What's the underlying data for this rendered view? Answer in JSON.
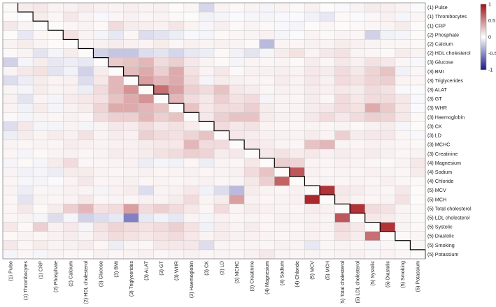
{
  "chart_data": {
    "type": "heatmap",
    "title": "",
    "variables": [
      "(1) Pulse",
      "(1) Thrombocytes",
      "(1) CRP",
      "(2) Phosphate",
      "(2) Calcium",
      "(2) HDL cholesterol",
      "(3) Glucose",
      "(3) BMI",
      "(3) Triglycerides",
      "(3) ALAT",
      "(3) GT",
      "(3) WHR",
      "(3) Haemoglobin",
      "(3) CK",
      "(3) LD",
      "(3) MCHC",
      "(3) Creatinine",
      "(4) Magnesium",
      "(4) Sodium",
      "(4) Chloride",
      "(5) MCV",
      "(5) MCH",
      "(5) Total cholesterol",
      "(5) LDL cholesterol",
      "(5) Systolic",
      "(5) Diastolic",
      "(5) Smoking",
      "(5) Potassium"
    ],
    "values": [
      [
        0.03,
        0.08,
        0.1,
        0.05,
        0.06,
        0.08,
        0.06,
        0.05,
        0.07,
        0.05,
        0.06,
        0.02,
        0.04,
        -0.18,
        0.05,
        0.03,
        0.05,
        -0.05,
        0.05,
        0.03,
        0.06,
        0.02,
        -0.03,
        0.05,
        0.08,
        0.07,
        0.05,
        -0.02
      ],
      [
        0.02,
        0.01,
        0.08,
        0.04,
        0.1,
        0.05,
        -0.03,
        0.04,
        0.06,
        0.04,
        0.05,
        0.03,
        0.02,
        -0.06,
        -0.05,
        -0.02,
        -0.04,
        -0.05,
        -0.03,
        -0.02,
        -0.06,
        -0.1,
        0.03,
        -0.02,
        0.04,
        0.06,
        -0.04,
        0.04
      ],
      [
        0.1,
        0.05,
        0.01,
        0.02,
        0.04,
        0.05,
        0.03,
        0.15,
        0.08,
        0.07,
        0.06,
        0.11,
        0.05,
        -0.04,
        0.07,
        0.03,
        0.05,
        0.03,
        -0.03,
        -0.05,
        0.02,
        0.04,
        0.02,
        0.03,
        0.04,
        0.05,
        0.08,
        0.02
      ],
      [
        0.02,
        -0.1,
        0.04,
        0.02,
        0.12,
        0.05,
        -0.05,
        -0.1,
        0.04,
        -0.15,
        -0.12,
        -0.08,
        -0.03,
        -0.05,
        0.03,
        0.04,
        0.05,
        0.06,
        -0.05,
        -0.02,
        0.05,
        0.03,
        0.05,
        0.04,
        -0.2,
        -0.06,
        -0.05,
        0.02
      ],
      [
        0.05,
        0.08,
        0.05,
        0.02,
        0.02,
        0.04,
        0.06,
        0.08,
        0.06,
        0.05,
        0.08,
        0.04,
        0.06,
        0.05,
        0.06,
        0.05,
        0.03,
        -0.3,
        0.05,
        0.04,
        0.06,
        0.05,
        0.08,
        0.06,
        0.05,
        0.04,
        0.04,
        0.03
      ],
      [
        0.03,
        0.05,
        -0.12,
        -0.05,
        0.08,
        0.02,
        -0.2,
        -0.25,
        -0.25,
        -0.15,
        -0.12,
        -0.18,
        -0.1,
        -0.08,
        0.03,
        -0.06,
        -0.12,
        -0.05,
        0.08,
        0.12,
        0.05,
        0.1,
        0.12,
        0.05,
        0.04,
        0.03,
        0.08,
        0.05
      ],
      [
        -0.2,
        -0.05,
        0.08,
        -0.1,
        -0.08,
        -0.1,
        0.02,
        0.22,
        0.25,
        0.3,
        0.15,
        0.2,
        0.1,
        0.05,
        0.03,
        -0.05,
        0.05,
        0.04,
        0.05,
        0.03,
        0.08,
        0.04,
        0.1,
        0.06,
        0.12,
        0.1,
        0.04,
        -0.03
      ],
      [
        0.05,
        0.1,
        0.12,
        -0.12,
        -0.06,
        -0.2,
        0.08,
        0.02,
        0.28,
        0.35,
        0.2,
        0.35,
        0.12,
        0.05,
        0.1,
        0.03,
        0.06,
        0.06,
        0.07,
        0.05,
        0.1,
        0.08,
        0.15,
        0.1,
        0.18,
        0.25,
        -0.06,
        0.04
      ],
      [
        -0.15,
        -0.08,
        0.08,
        0.05,
        0.06,
        -0.15,
        0.1,
        0.3,
        0.02,
        0.4,
        0.3,
        0.35,
        0.15,
        -0.05,
        0.08,
        0.06,
        0.05,
        0.04,
        0.08,
        0.05,
        0.1,
        0.06,
        0.15,
        0.12,
        0.18,
        0.2,
        0.05,
        0.04
      ],
      [
        0.05,
        -0.05,
        0.08,
        0.05,
        0.06,
        -0.08,
        0.15,
        0.3,
        0.45,
        0.02,
        0.6,
        0.4,
        0.2,
        0.15,
        0.25,
        0.1,
        0.08,
        0.04,
        0.06,
        0.05,
        0.08,
        0.06,
        0.1,
        0.08,
        0.15,
        0.12,
        -0.03,
        -0.02
      ],
      [
        0.06,
        -0.12,
        0.05,
        -0.05,
        0.08,
        0.1,
        0.12,
        0.25,
        0.35,
        0.45,
        0.02,
        0.3,
        0.15,
        0.1,
        0.2,
        0.12,
        0.15,
        -0.05,
        0.05,
        0.04,
        0.08,
        0.04,
        0.15,
        0.1,
        0.15,
        0.15,
        0.1,
        -0.03
      ],
      [
        0.05,
        -0.06,
        0.08,
        -0.05,
        0.06,
        0.08,
        0.18,
        0.35,
        0.35,
        0.3,
        0.25,
        0.02,
        0.25,
        0.1,
        0.15,
        0.15,
        0.2,
        0.08,
        0.05,
        0.05,
        0.08,
        0.1,
        0.15,
        0.12,
        0.35,
        0.22,
        0.1,
        -0.02
      ],
      [
        0.03,
        -0.05,
        0.05,
        0.04,
        0.06,
        0.04,
        0.15,
        0.2,
        0.2,
        0.3,
        0.2,
        0.25,
        0.02,
        0.1,
        0.2,
        0.25,
        0.25,
        0.08,
        0.06,
        0.05,
        0.1,
        0.15,
        0.1,
        0.15,
        0.2,
        0.18,
        0.1,
        0.03
      ],
      [
        -0.15,
        0.1,
        -0.05,
        -0.05,
        0.05,
        -0.05,
        0.05,
        0.1,
        0.08,
        0.15,
        0.1,
        0.12,
        0.08,
        0.02,
        0.15,
        0.1,
        0.12,
        0.05,
        0.04,
        0.04,
        0.05,
        0.04,
        0.05,
        0.03,
        0.06,
        0.08,
        -0.04,
        0.02
      ],
      [
        -0.08,
        0.08,
        0.05,
        0.08,
        0.06,
        0.12,
        0.05,
        0.08,
        0.06,
        0.2,
        0.15,
        0.12,
        0.18,
        0.25,
        0.02,
        0.1,
        0.08,
        0.06,
        0.06,
        0.05,
        0.08,
        0.05,
        0.2,
        0.08,
        0.1,
        0.1,
        0.04,
        -0.03
      ],
      [
        0.05,
        0.04,
        0.05,
        0.04,
        0.08,
        0.06,
        0.05,
        0.06,
        0.06,
        0.08,
        0.1,
        0.1,
        0.3,
        0.15,
        0.15,
        0.02,
        0.1,
        0.08,
        0.05,
        0.04,
        0.25,
        0.3,
        0.05,
        0.04,
        0.06,
        0.05,
        0.04,
        0.03
      ],
      [
        0.04,
        -0.05,
        0.03,
        0.05,
        0.06,
        0.04,
        0.05,
        0.08,
        0.06,
        0.08,
        0.12,
        0.15,
        0.2,
        0.18,
        0.08,
        0.1,
        0.02,
        0.1,
        0.12,
        0.08,
        0.1,
        0.06,
        0.08,
        0.06,
        0.08,
        0.06,
        0.04,
        0.05
      ],
      [
        -0.05,
        0.03,
        -0.04,
        0.08,
        0.15,
        0.04,
        0.04,
        0.05,
        0.06,
        -0.08,
        -0.05,
        -0.06,
        0.04,
        -0.08,
        0.05,
        0.04,
        0.1,
        0.02,
        0.2,
        0.18,
        0.05,
        0.04,
        0.06,
        0.05,
        0.04,
        0.03,
        0.05,
        0.1
      ],
      [
        0.05,
        -0.06,
        -0.05,
        -0.08,
        0.08,
        0.08,
        0.05,
        0.04,
        0.05,
        0.06,
        0.04,
        0.05,
        0.06,
        0.04,
        0.05,
        0.06,
        0.15,
        0.25,
        0.02,
        0.7,
        0.06,
        0.04,
        0.05,
        0.04,
        0.06,
        0.05,
        0.04,
        0.08
      ],
      [
        0.04,
        -0.04,
        -0.05,
        -0.02,
        0.05,
        0.1,
        0.04,
        0.05,
        0.06,
        0.04,
        0.05,
        0.04,
        0.05,
        0.06,
        0.04,
        0.05,
        0.1,
        0.2,
        0.65,
        0.02,
        0.04,
        0.05,
        0.04,
        0.05,
        0.04,
        0.06,
        0.04,
        0.03
      ],
      [
        0.05,
        -0.08,
        0.04,
        0.05,
        0.06,
        0.05,
        -0.05,
        0.06,
        0.08,
        -0.15,
        0.05,
        0.06,
        0.1,
        -0.06,
        -0.15,
        -0.3,
        0.08,
        0.05,
        0.04,
        0.06,
        0.02,
        0.85,
        0.1,
        0.08,
        0.05,
        0.04,
        0.1,
        0.02
      ],
      [
        0.04,
        -0.12,
        0.05,
        0.04,
        0.05,
        0.1,
        0.04,
        0.05,
        0.04,
        0.06,
        0.05,
        0.08,
        0.15,
        0.05,
        0.08,
        0.4,
        0.06,
        0.04,
        0.05,
        0.06,
        0.9,
        0.02,
        0.08,
        0.05,
        0.04,
        0.05,
        0.12,
        0.02
      ],
      [
        0.04,
        0.1,
        0.03,
        0.08,
        0.2,
        0.3,
        0.12,
        0.15,
        0.4,
        0.15,
        0.2,
        0.15,
        0.1,
        0.04,
        0.15,
        0.05,
        0.08,
        0.06,
        0.05,
        0.04,
        0.08,
        0.06,
        0.02,
        0.85,
        0.15,
        0.12,
        0.05,
        0.03
      ],
      [
        0.04,
        0.05,
        -0.05,
        -0.15,
        -0.05,
        -0.2,
        -0.15,
        -0.1,
        -0.55,
        -0.1,
        -0.06,
        -0.1,
        0.05,
        -0.05,
        0.06,
        0.04,
        0.05,
        0.04,
        0.06,
        0.05,
        0.06,
        0.05,
        0.7,
        0.02,
        0.1,
        0.08,
        0.05,
        0.03
      ],
      [
        0.1,
        0.03,
        0.2,
        0.06,
        0.1,
        -0.05,
        0.12,
        0.18,
        0.15,
        0.12,
        0.15,
        0.2,
        0.12,
        -0.06,
        0.08,
        0.05,
        0.08,
        0.04,
        0.05,
        0.04,
        0.06,
        0.05,
        0.15,
        0.1,
        0.02,
        0.85,
        0.05,
        0.03
      ],
      [
        0.03,
        0.05,
        0.04,
        0.06,
        0.08,
        0.05,
        0.1,
        0.15,
        0.12,
        0.1,
        0.12,
        0.15,
        0.1,
        0.05,
        0.08,
        0.06,
        0.06,
        0.05,
        0.04,
        0.05,
        0.06,
        0.04,
        0.12,
        0.08,
        0.6,
        0.02,
        0.03,
        0.04
      ],
      [
        0.1,
        0.04,
        0.08,
        0.05,
        0.06,
        0.08,
        0.04,
        -0.08,
        0.05,
        0.04,
        0.1,
        0.1,
        0.1,
        -0.15,
        0.05,
        0.04,
        0.05,
        0.04,
        0.06,
        0.05,
        -0.1,
        0.04,
        0.05,
        0.04,
        -0.05,
        0.04,
        0.02,
        0.04
      ],
      [
        -0.05,
        0.04,
        -0.04,
        0.05,
        0.04,
        0.03,
        0.06,
        0.04,
        0.05,
        0.06,
        0.04,
        0.05,
        0.06,
        0.04,
        0.05,
        0.04,
        0.06,
        0.1,
        0.05,
        0.04,
        0.05,
        0.04,
        0.05,
        0.06,
        0.04,
        0.05,
        0.04,
        0.02
      ]
    ],
    "colorbar": {
      "range": [
        -1,
        1
      ],
      "ticks": [
        1,
        0.5,
        0,
        -0.5,
        -1
      ],
      "tick_labels": [
        "1",
        "0.5",
        "0",
        "-0.5",
        "-1"
      ]
    },
    "colors": {
      "negative": "#1a1a8e",
      "zero": "#ffffff",
      "positive": "#a10f14"
    },
    "diagonal_staircase": true,
    "legend_position": "top-right"
  }
}
